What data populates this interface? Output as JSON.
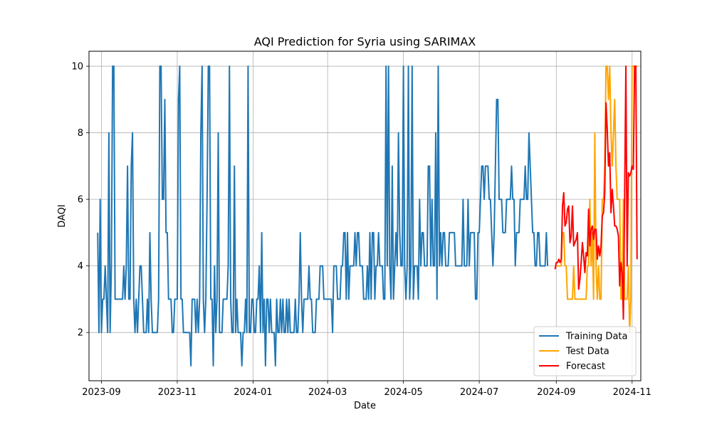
{
  "chart_data": {
    "type": "line",
    "title": "AQI Prediction for Syria using SARIMAX",
    "xlabel": "Date",
    "ylabel": "DAQI",
    "x_ticks": [
      "2023-09",
      "2023-11",
      "2024-01",
      "2024-03",
      "2024-05",
      "2024-07",
      "2024-09",
      "2024-11"
    ],
    "x_tick_dates": [
      "2023-09-01",
      "2023-11-01",
      "2024-01-01",
      "2024-03-01",
      "2024-05-01",
      "2024-07-01",
      "2024-09-01",
      "2024-11-01"
    ],
    "y_ticks": [
      "2",
      "4",
      "6",
      "8",
      "10"
    ],
    "xlim": [
      "2023-08-22",
      "2024-11-08"
    ],
    "ylim": [
      0.55,
      10.45
    ],
    "grid": true,
    "legend_position": "lower-right",
    "series": [
      {
        "name": "Training Data",
        "color": "#1f77b4",
        "start": "2023-08-29",
        "values": [
          5,
          2,
          6,
          2,
          3,
          3,
          4,
          3,
          2,
          8,
          2,
          4,
          10,
          10,
          3,
          3,
          3,
          3,
          3,
          3,
          3,
          4,
          3,
          4,
          7,
          3,
          3,
          7,
          8,
          3,
          2,
          3,
          2,
          3,
          4,
          4,
          3,
          2,
          2,
          2,
          3,
          2,
          5,
          3,
          2,
          2,
          2,
          2,
          2,
          3,
          10,
          10,
          6,
          6,
          9,
          5,
          5,
          3,
          3,
          3,
          2,
          2,
          3,
          3,
          3,
          9,
          10,
          3,
          3,
          2,
          2,
          2,
          2,
          2,
          2,
          1,
          3,
          3,
          3,
          2,
          3,
          2,
          3,
          8,
          10,
          3,
          2,
          3,
          6,
          10,
          10,
          3,
          3,
          1,
          4,
          2,
          3,
          8,
          2,
          2,
          2,
          3,
          3,
          3,
          3,
          4,
          10,
          3,
          2,
          2,
          7,
          2,
          3,
          2,
          2,
          2,
          1,
          2,
          2,
          3,
          2,
          10,
          2,
          2,
          3,
          3,
          2,
          2,
          3,
          3,
          4,
          2,
          5,
          2,
          3,
          1,
          3,
          3,
          2,
          3,
          2,
          2,
          2,
          1,
          3,
          2,
          2,
          3,
          2,
          3,
          2,
          2,
          3,
          2,
          3,
          2,
          2,
          2,
          2,
          3,
          2,
          2,
          3,
          5,
          3,
          2,
          3,
          3,
          3,
          3,
          4,
          3,
          3,
          2,
          2,
          2,
          3,
          3,
          3,
          4,
          4,
          4,
          3,
          3,
          3,
          3,
          3,
          3,
          3,
          2,
          4,
          4,
          4,
          3,
          3,
          3,
          4,
          4,
          5,
          5,
          3,
          5,
          3,
          4,
          4,
          4,
          4,
          5,
          4,
          5,
          5,
          4,
          4,
          4,
          3,
          3,
          3,
          4,
          3,
          5,
          3,
          5,
          5,
          3,
          4,
          4,
          5,
          4,
          4,
          4,
          3,
          3,
          10,
          4,
          10,
          4,
          3,
          7,
          3,
          4,
          5,
          4,
          8,
          5,
          4,
          4,
          10,
          4,
          3,
          4,
          10,
          3,
          4,
          10,
          3,
          4,
          4,
          4,
          3,
          6,
          4,
          5,
          5,
          4,
          4,
          4,
          7,
          7,
          4,
          6,
          4,
          4,
          8,
          3,
          10,
          4,
          5,
          4,
          5,
          5,
          4,
          4,
          4,
          5,
          5,
          5,
          5,
          5,
          4,
          4,
          4,
          4,
          4,
          4,
          6,
          4,
          4,
          4,
          6,
          4,
          5,
          5,
          5,
          5,
          3,
          3,
          5,
          5,
          6,
          7,
          7,
          6,
          7,
          7,
          7,
          6,
          6,
          5,
          4,
          5,
          7,
          9,
          9,
          6,
          6,
          6,
          5,
          5,
          5,
          6,
          6,
          6,
          6,
          7,
          6,
          6,
          4,
          5,
          5,
          5,
          6,
          6,
          6,
          6,
          7,
          6,
          6,
          8,
          7,
          6,
          5,
          5,
          4,
          4,
          5,
          5,
          4,
          4,
          4,
          4,
          4,
          5,
          4
        ]
      },
      {
        "name": "Test Data",
        "color": "#ffa500",
        "start": "2024-08-31",
        "values": [
          4,
          4,
          4,
          4,
          4,
          4,
          5,
          5,
          4,
          4,
          3,
          3,
          3,
          3,
          3,
          4,
          3,
          3,
          3,
          3,
          3,
          3,
          3,
          3,
          3,
          3,
          4,
          4,
          6,
          4,
          5,
          3,
          8,
          4,
          3,
          4,
          3,
          3,
          6,
          6,
          7,
          10,
          10,
          9,
          10,
          8,
          7,
          8,
          9,
          7,
          6,
          6,
          6,
          3,
          3,
          6,
          3,
          3,
          3,
          4,
          2,
          3,
          10,
          10,
          10,
          10,
          10
        ]
      },
      {
        "name": "Forecast",
        "color": "#ff0000",
        "start": "2024-08-31",
        "values": [
          3.9,
          4.1,
          4.1,
          4.2,
          4.1,
          4.2,
          5.8,
          6.2,
          5.2,
          5.3,
          5.7,
          5.8,
          4.7,
          4.9,
          5.8,
          4.6,
          4.7,
          4.8,
          5,
          3.3,
          3.6,
          4.1,
          4.7,
          4.3,
          3.8,
          4.4,
          4.3,
          5.7,
          4.6,
          5.1,
          5.2,
          4.8,
          5.1,
          5.1,
          4.2,
          4.6,
          4.3,
          4.6,
          5.5,
          5.6,
          6.2,
          8.9,
          8.1,
          7,
          7.4,
          5.6,
          6.3,
          5.8,
          5.2,
          5.2,
          5.1,
          4.9,
          3.4,
          4.1,
          3.8,
          2.4,
          6.1,
          10,
          4,
          6.8,
          6.7,
          6.8,
          7,
          6.9,
          10,
          10,
          4.2
        ]
      }
    ]
  }
}
